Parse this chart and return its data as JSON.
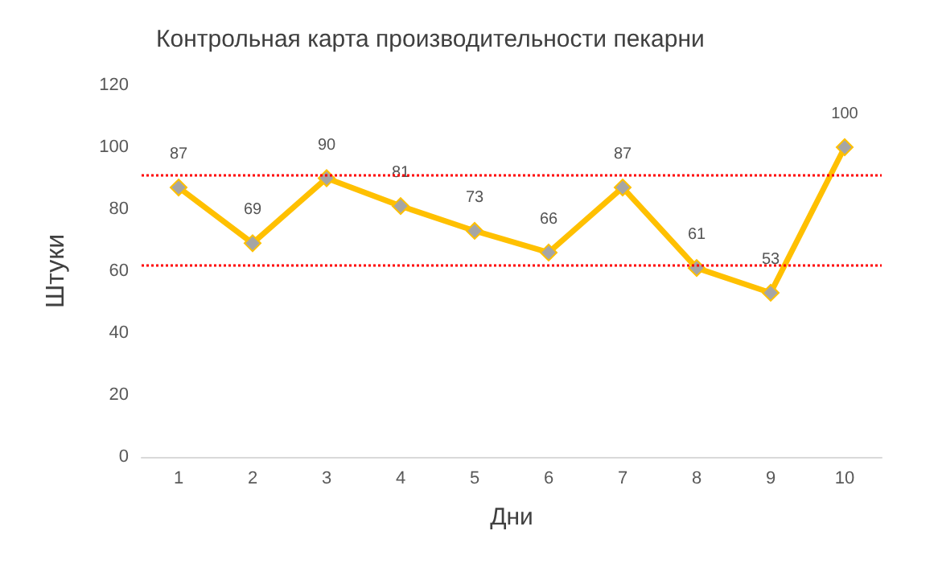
{
  "chart_data": {
    "type": "line",
    "title": "Контрольная карта производительности пекарни",
    "xlabel": "Дни",
    "ylabel": "Штуки",
    "categories": [
      "1",
      "2",
      "3",
      "4",
      "5",
      "6",
      "7",
      "8",
      "9",
      "10"
    ],
    "series": [
      {
        "color": "#ffc000",
        "values": [
          87,
          69,
          90,
          81,
          73,
          66,
          87,
          61,
          53,
          100
        ]
      }
    ],
    "ylim": [
      0,
      120
    ],
    "yticks": [
      0,
      20,
      40,
      60,
      80,
      100,
      120
    ],
    "grid": false,
    "marker": "diamond",
    "line_style": "solid",
    "data_labels": true,
    "ref_lines": [
      {
        "axis": "y",
        "value": 91,
        "color": "#ff0000",
        "line_style": "dotted"
      },
      {
        "axis": "y",
        "value": 62,
        "color": "#ff0000",
        "line_style": "dotted"
      }
    ]
  }
}
